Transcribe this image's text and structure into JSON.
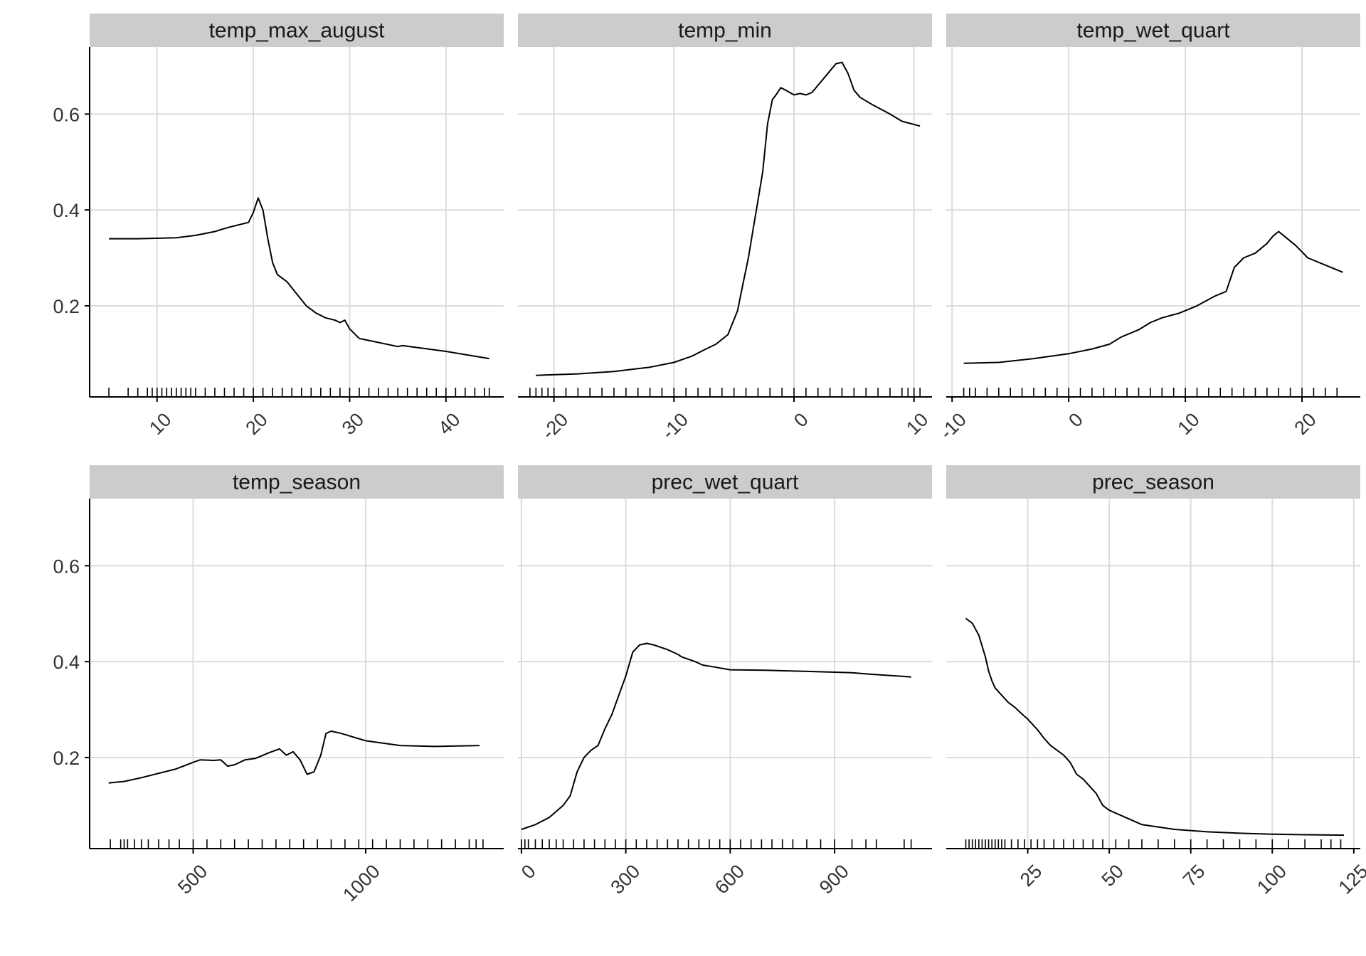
{
  "chart_data": [
    {
      "type": "line",
      "title": "temp_max_august",
      "xlim": [
        3,
        46
      ],
      "ylim": [
        0.01,
        0.74
      ],
      "x_ticks": [
        10,
        20,
        30,
        40
      ],
      "y_ticks": [
        0.2,
        0.4,
        0.6
      ],
      "x": [
        5,
        8,
        12,
        14,
        16,
        16.8,
        17.5,
        19.5,
        20,
        20.5,
        21,
        21.5,
        22,
        22.5,
        23.5,
        24.5,
        25.5,
        26.5,
        27.5,
        28.5,
        29,
        29.5,
        30,
        31,
        35,
        35.5,
        40,
        44.5
      ],
      "y": [
        0.34,
        0.34,
        0.342,
        0.347,
        0.355,
        0.36,
        0.364,
        0.374,
        0.395,
        0.425,
        0.4,
        0.34,
        0.29,
        0.265,
        0.25,
        0.225,
        0.2,
        0.185,
        0.175,
        0.17,
        0.165,
        0.17,
        0.152,
        0.132,
        0.115,
        0.117,
        0.105,
        0.09
      ],
      "rug": [
        5,
        7,
        8,
        9,
        9.5,
        10,
        10.5,
        11,
        11.5,
        12,
        12.5,
        13,
        13.5,
        14,
        15,
        16,
        17,
        18,
        19,
        20,
        21,
        22,
        23,
        24,
        25,
        26,
        27,
        28,
        29,
        30,
        31,
        32,
        33,
        34,
        35,
        36,
        37,
        38,
        39,
        40,
        41,
        42,
        43,
        44,
        44.5
      ]
    },
    {
      "type": "line",
      "title": "temp_min",
      "xlim": [
        -23,
        11.5
      ],
      "ylim": [
        0.01,
        0.74
      ],
      "x_ticks": [
        -20,
        -10,
        0,
        10
      ],
      "y_ticks": [
        0.2,
        0.4,
        0.6
      ],
      "x": [
        -21.5,
        -18,
        -15,
        -12,
        -10,
        -8.5,
        -7.5,
        -6.5,
        -5.5,
        -4.7,
        -4.3,
        -3.8,
        -3.4,
        -3,
        -2.6,
        -2.2,
        -1.8,
        -1.5,
        -1.1,
        -0.7,
        0,
        0.5,
        1,
        1.5,
        2,
        2.5,
        3,
        3.5,
        4,
        4.5,
        5,
        5.5,
        6.5,
        8,
        9,
        10.5
      ],
      "y": [
        0.055,
        0.058,
        0.063,
        0.072,
        0.082,
        0.095,
        0.108,
        0.12,
        0.14,
        0.19,
        0.24,
        0.3,
        0.36,
        0.42,
        0.48,
        0.58,
        0.63,
        0.64,
        0.655,
        0.65,
        0.64,
        0.643,
        0.64,
        0.645,
        0.66,
        0.675,
        0.69,
        0.705,
        0.708,
        0.685,
        0.65,
        0.635,
        0.62,
        0.6,
        0.585,
        0.575
      ],
      "rug": [
        -22,
        -21.5,
        -21,
        -20.5,
        -20,
        -19,
        -18,
        -17,
        -16,
        -15,
        -14,
        -13,
        -12,
        -11,
        -10,
        -9,
        -8,
        -7,
        -6,
        -5,
        -4,
        -3,
        -2,
        -1,
        0,
        1,
        2,
        3,
        4,
        5,
        6,
        7,
        8,
        9,
        9.5,
        10,
        10.5
      ]
    },
    {
      "type": "line",
      "title": "temp_wet_quart",
      "xlim": [
        -10.5,
        25
      ],
      "ylim": [
        0.01,
        0.74
      ],
      "x_ticks": [
        -10,
        0,
        10,
        20
      ],
      "y_ticks": [
        0.2,
        0.4,
        0.6
      ],
      "x": [
        -9,
        -6,
        -3,
        0,
        2,
        3.5,
        4.5,
        6,
        7,
        8,
        9.5,
        11,
        12.5,
        13.5,
        14.2,
        15,
        16,
        17,
        17.5,
        18,
        18.5,
        19.5,
        20.5,
        22,
        23.5
      ],
      "y": [
        0.08,
        0.082,
        0.09,
        0.1,
        0.11,
        0.12,
        0.135,
        0.15,
        0.165,
        0.175,
        0.185,
        0.2,
        0.22,
        0.23,
        0.28,
        0.3,
        0.31,
        0.33,
        0.345,
        0.355,
        0.345,
        0.325,
        0.3,
        0.285,
        0.27
      ],
      "rug": [
        -9,
        -8.5,
        -8,
        -7,
        -6,
        -5,
        -4,
        -3,
        -2,
        -1,
        0,
        1,
        2,
        3,
        4,
        5,
        6,
        7,
        8,
        9,
        10,
        11,
        12,
        13,
        14,
        15,
        16,
        17,
        18,
        19,
        20,
        21,
        22,
        23
      ]
    },
    {
      "type": "line",
      "title": "temp_season",
      "xlim": [
        200,
        1400
      ],
      "ylim": [
        0.01,
        0.74
      ],
      "x_ticks": [
        500,
        1000
      ],
      "y_ticks": [
        0.2,
        0.4,
        0.6
      ],
      "x": [
        255,
        300,
        350,
        400,
        450,
        500,
        520,
        560,
        580,
        600,
        620,
        650,
        680,
        720,
        750,
        770,
        790,
        810,
        830,
        850,
        870,
        885,
        900,
        930,
        1000,
        1100,
        1200,
        1330
      ],
      "y": [
        0.147,
        0.15,
        0.158,
        0.167,
        0.176,
        0.19,
        0.195,
        0.194,
        0.195,
        0.182,
        0.185,
        0.195,
        0.198,
        0.21,
        0.218,
        0.205,
        0.212,
        0.195,
        0.165,
        0.17,
        0.205,
        0.25,
        0.255,
        0.25,
        0.235,
        0.225,
        0.223,
        0.225
      ],
      "rug": [
        260,
        290,
        300,
        310,
        330,
        350,
        370,
        400,
        430,
        460,
        500,
        540,
        580,
        620,
        660,
        700,
        740,
        780,
        820,
        860,
        900,
        940,
        980,
        1020,
        1060,
        1100,
        1140,
        1180,
        1220,
        1260,
        1300,
        1320,
        1340
      ]
    },
    {
      "type": "line",
      "title": "prec_wet_quart",
      "xlim": [
        -10,
        1180
      ],
      "ylim": [
        0.01,
        0.74
      ],
      "x_ticks": [
        0,
        300,
        600,
        900
      ],
      "y_ticks": [
        0.2,
        0.4,
        0.6
      ],
      "x": [
        0,
        40,
        80,
        120,
        140,
        160,
        180,
        200,
        220,
        240,
        260,
        280,
        300,
        320,
        340,
        360,
        380,
        420,
        450,
        460,
        480,
        500,
        520,
        560,
        600,
        700,
        800,
        900,
        950,
        1000,
        1120
      ],
      "y": [
        0.05,
        0.06,
        0.075,
        0.1,
        0.12,
        0.17,
        0.2,
        0.215,
        0.225,
        0.26,
        0.29,
        0.33,
        0.37,
        0.42,
        0.435,
        0.438,
        0.435,
        0.425,
        0.415,
        0.41,
        0.405,
        0.4,
        0.393,
        0.388,
        0.383,
        0.382,
        0.38,
        0.378,
        0.377,
        0.374,
        0.368
      ],
      "rug": [
        0,
        10,
        20,
        40,
        60,
        80,
        100,
        120,
        150,
        180,
        210,
        240,
        270,
        300,
        330,
        360,
        390,
        420,
        450,
        480,
        510,
        540,
        570,
        600,
        630,
        660,
        690,
        720,
        750,
        780,
        820,
        860,
        900,
        950,
        990,
        1020,
        1100,
        1120
      ]
    },
    {
      "type": "line",
      "title": "prec_season",
      "xlim": [
        0,
        127
      ],
      "ylim": [
        0.01,
        0.74
      ],
      "x_ticks": [
        25,
        50,
        75,
        100,
        125
      ],
      "y_ticks": [
        0.2,
        0.4,
        0.6
      ],
      "x": [
        6,
        8,
        10,
        12,
        13,
        14,
        15,
        17,
        19,
        20,
        21,
        23,
        25,
        27,
        28,
        30,
        32,
        34,
        36,
        38,
        40,
        42,
        44,
        46,
        48,
        50,
        55,
        60,
        70,
        80,
        90,
        100,
        110,
        122
      ],
      "y": [
        0.49,
        0.48,
        0.455,
        0.41,
        0.38,
        0.36,
        0.345,
        0.33,
        0.315,
        0.31,
        0.305,
        0.292,
        0.28,
        0.265,
        0.258,
        0.24,
        0.225,
        0.215,
        0.205,
        0.19,
        0.165,
        0.155,
        0.14,
        0.125,
        0.1,
        0.09,
        0.075,
        0.06,
        0.05,
        0.045,
        0.042,
        0.04,
        0.039,
        0.038
      ],
      "rug": [
        6,
        7,
        8,
        9,
        10,
        11,
        12,
        13,
        14,
        15,
        16,
        17,
        18,
        20,
        22,
        24,
        26,
        28,
        30,
        33,
        36,
        39,
        42,
        45,
        48,
        52,
        56,
        60,
        65,
        70,
        75,
        80,
        85,
        90,
        95,
        100,
        105,
        110,
        115,
        118,
        121
      ]
    }
  ],
  "colors": {
    "strip_bg": "#cccccc",
    "grid": "#dcdcdc",
    "line": "#000000",
    "axis": "#000000"
  }
}
